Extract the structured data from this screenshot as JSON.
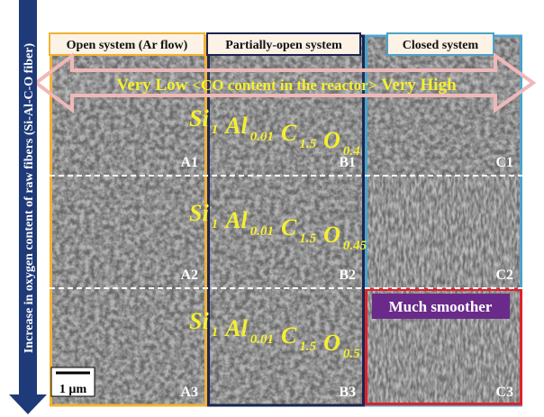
{
  "side_label": "Increase in oxygen content of raw fibers (Si-Al-C-O fiber)",
  "columns": [
    "Open system (Ar flow)",
    "Partially-open system",
    "Closed system"
  ],
  "arrow": {
    "left": "Very Low",
    "middle": "<CO content in the reactor>",
    "right": "Very High"
  },
  "formulas": [
    [
      [
        "Si",
        "1"
      ],
      [
        "Al",
        "0.01"
      ],
      [
        "C",
        "1.5"
      ],
      [
        "O",
        "0.4"
      ]
    ],
    [
      [
        "Si",
        "1"
      ],
      [
        "Al",
        "0.01"
      ],
      [
        "C",
        "1.5"
      ],
      [
        "O",
        "0.45"
      ]
    ],
    [
      [
        "Si",
        "1"
      ],
      [
        "Al",
        "0.01"
      ],
      [
        "C",
        "1.5"
      ],
      [
        "O",
        "0.5"
      ]
    ]
  ],
  "panels": [
    [
      "A1",
      "B1",
      "C1"
    ],
    [
      "A2",
      "B2",
      "C2"
    ],
    [
      "A3",
      "B3",
      "C3"
    ]
  ],
  "annotation": "Much smoother",
  "scale_bar": "1 µm"
}
